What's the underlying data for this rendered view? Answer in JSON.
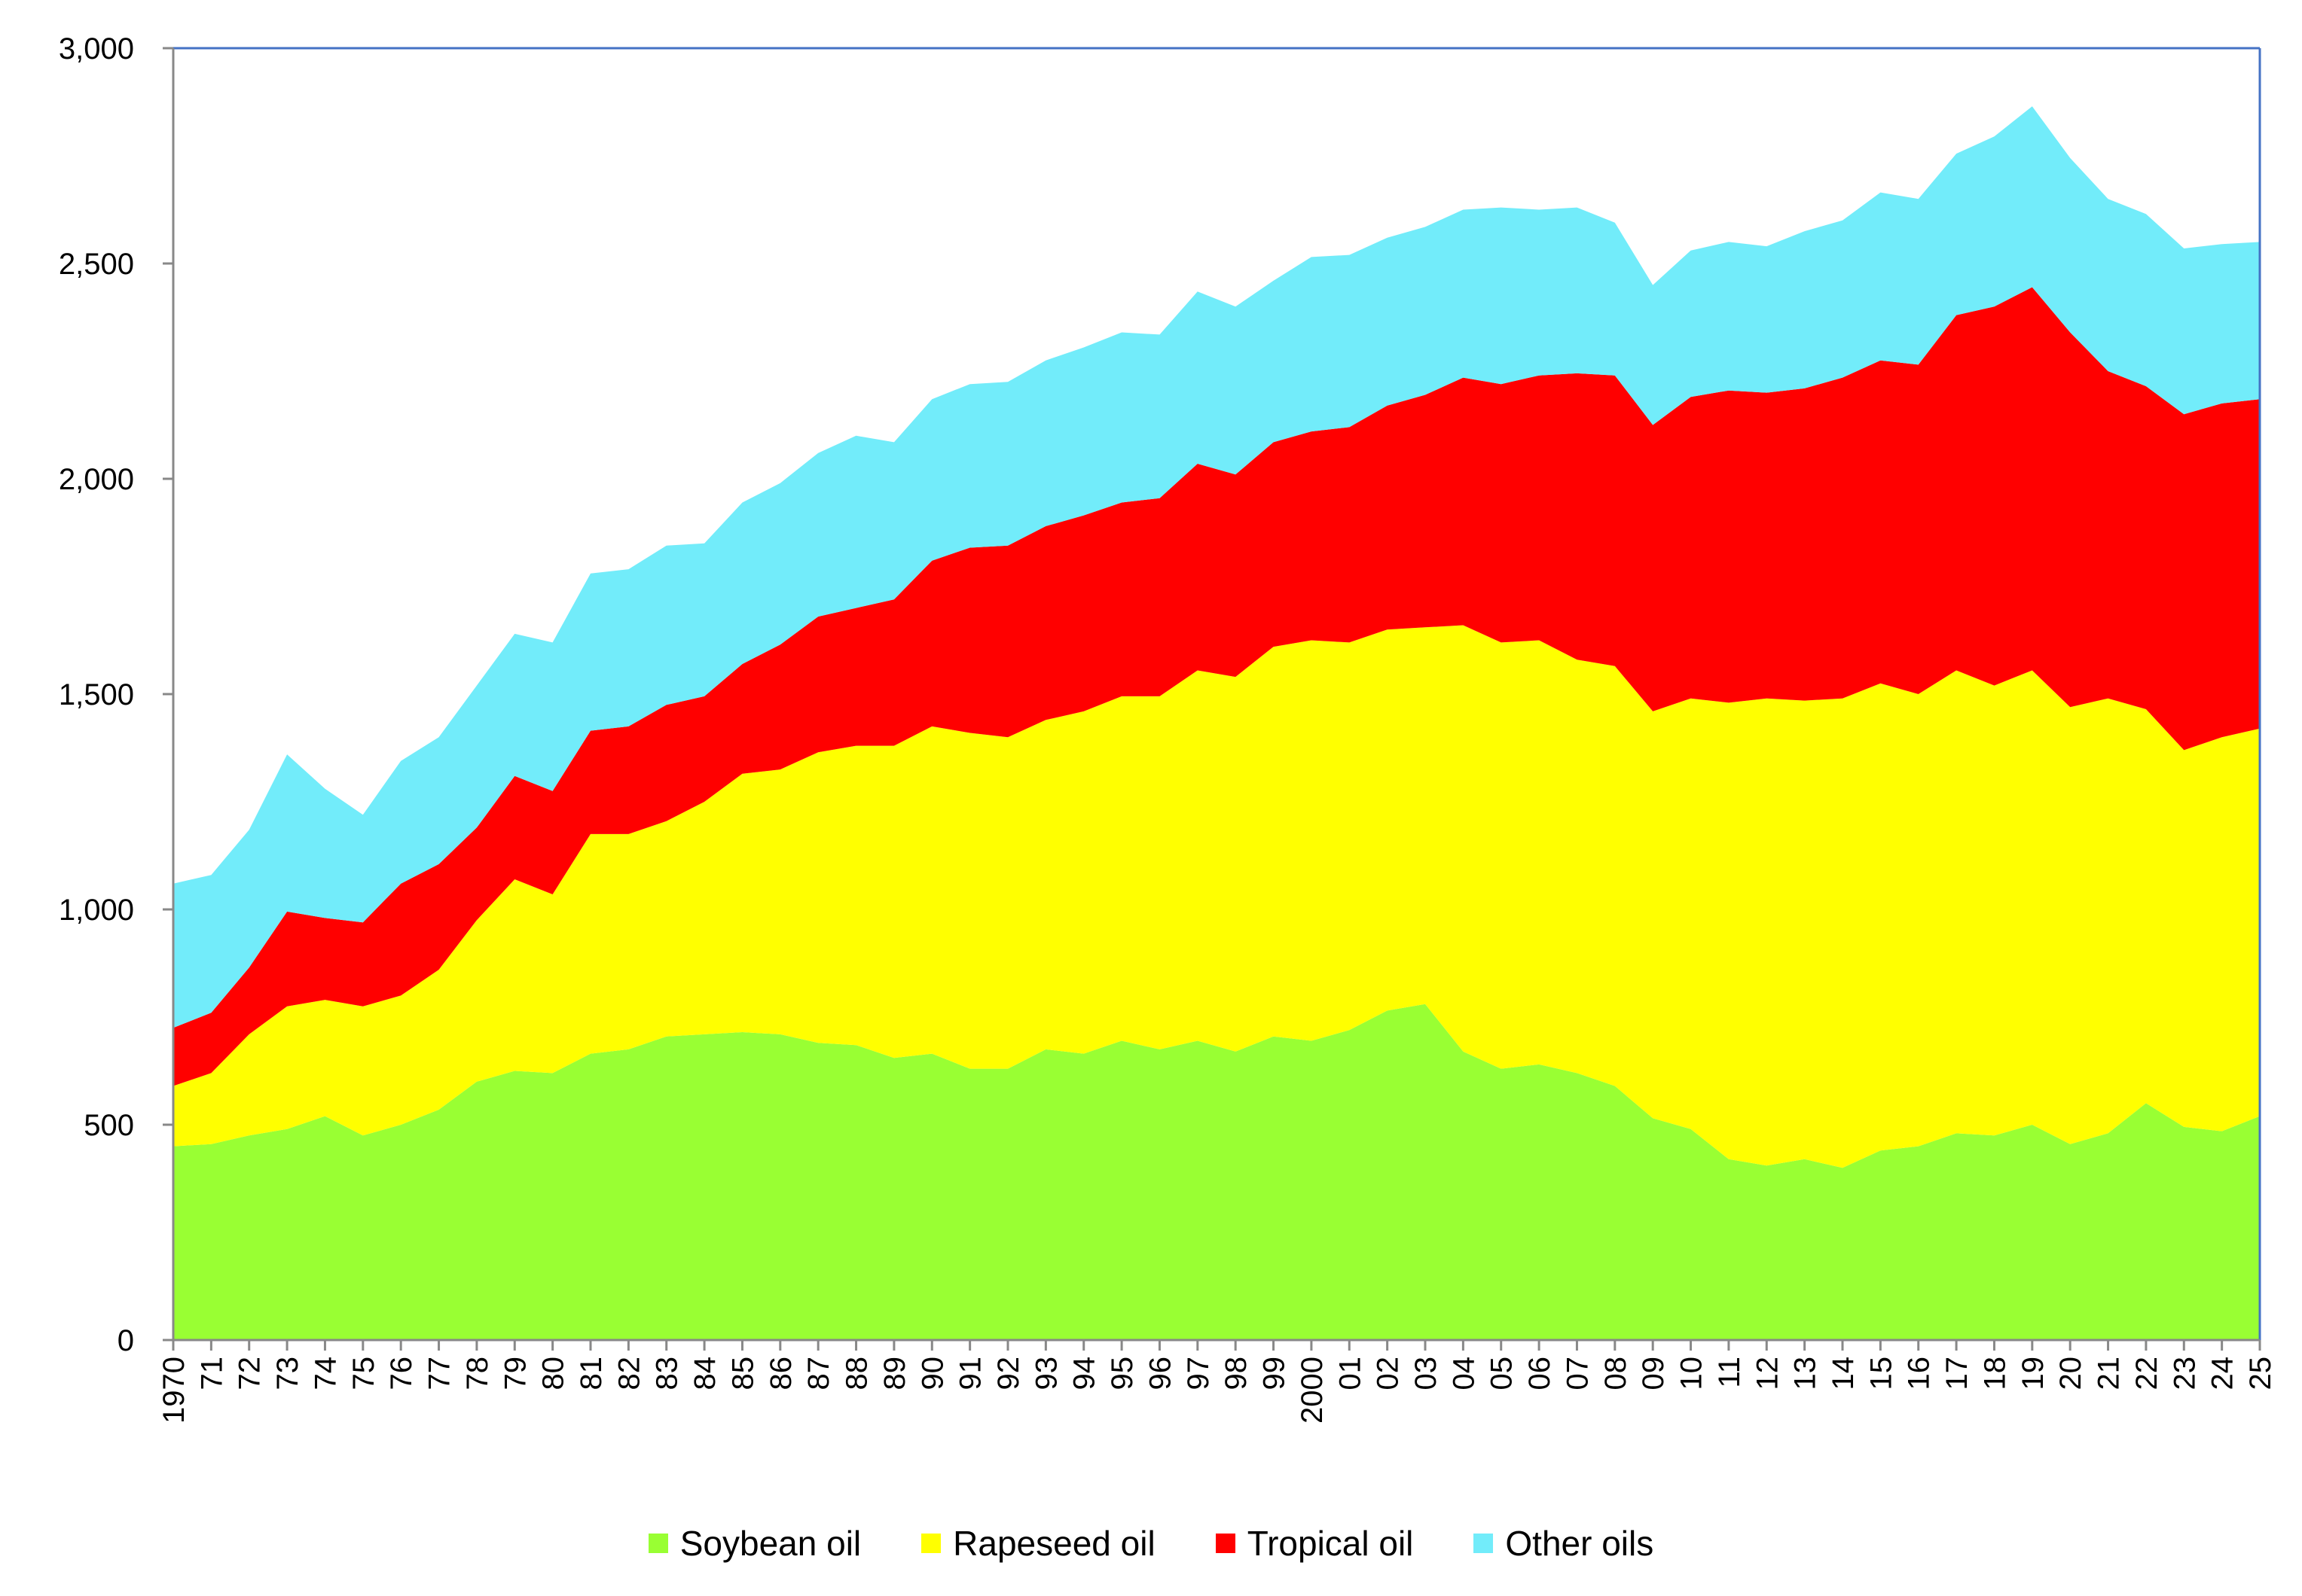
{
  "chart_data": {
    "type": "area",
    "stacked": true,
    "title": "",
    "xlabel": "",
    "ylabel": "",
    "ylim": [
      0,
      3000
    ],
    "yticks": [
      0,
      500,
      1000,
      1500,
      2000,
      2500,
      3000
    ],
    "ytick_labels": [
      "0",
      "500",
      "1,000",
      "1,500",
      "2,000",
      "2,500",
      "3,000"
    ],
    "grid": false,
    "legend_position": "bottom",
    "x": [
      1970,
      1971,
      1972,
      1973,
      1974,
      1975,
      1976,
      1977,
      1978,
      1979,
      1980,
      1981,
      1982,
      1983,
      1984,
      1985,
      1986,
      1987,
      1988,
      1989,
      1990,
      1991,
      1992,
      1993,
      1994,
      1995,
      1996,
      1997,
      1998,
      1999,
      2000,
      2001,
      2002,
      2003,
      2004,
      2005,
      2006,
      2007,
      2008,
      2009,
      2010,
      2011,
      2012,
      2013,
      2014,
      2015,
      2016,
      2017,
      2018,
      2019,
      2020,
      2021,
      2022,
      2023,
      2024,
      2025
    ],
    "xtick_labels": [
      "1970",
      "71",
      "72",
      "73",
      "74",
      "75",
      "76",
      "77",
      "78",
      "79",
      "80",
      "81",
      "82",
      "83",
      "84",
      "85",
      "86",
      "87",
      "88",
      "89",
      "90",
      "91",
      "92",
      "93",
      "94",
      "95",
      "96",
      "97",
      "98",
      "99",
      "2000",
      "01",
      "02",
      "03",
      "04",
      "05",
      "06",
      "07",
      "08",
      "09",
      "10",
      "11",
      "12",
      "13",
      "14",
      "15",
      "16",
      "17",
      "18",
      "19",
      "20",
      "21",
      "22",
      "23",
      "24",
      "25"
    ],
    "series": [
      {
        "name": "Soybean oil",
        "color": "#99ff33",
        "values": [
          450,
          455,
          475,
          490,
          520,
          475,
          500,
          535,
          600,
          625,
          620,
          665,
          675,
          705,
          710,
          715,
          710,
          690,
          685,
          655,
          665,
          630,
          630,
          675,
          665,
          695,
          675,
          695,
          670,
          705,
          695,
          720,
          765,
          780,
          670,
          630,
          640,
          620,
          590,
          515,
          490,
          420,
          405,
          420,
          400,
          440,
          450,
          480,
          475,
          500,
          455,
          480,
          550,
          495,
          485,
          520
        ]
      },
      {
        "name": "Rapeseed oil",
        "color": "#ffff00",
        "values": [
          140,
          165,
          235,
          285,
          270,
          300,
          300,
          325,
          375,
          445,
          415,
          510,
          500,
          500,
          540,
          600,
          615,
          675,
          695,
          725,
          760,
          780,
          770,
          765,
          795,
          800,
          820,
          860,
          870,
          905,
          930,
          900,
          885,
          875,
          990,
          990,
          985,
          960,
          975,
          945,
          1000,
          1060,
          1085,
          1065,
          1090,
          1085,
          1050,
          1075,
          1045,
          1055,
          1015,
          1010,
          915,
          875,
          915,
          900
        ]
      },
      {
        "name": "Tropical oil",
        "color": "#ff0000",
        "values": [
          135,
          140,
          155,
          220,
          190,
          195,
          260,
          245,
          215,
          240,
          240,
          240,
          250,
          270,
          245,
          255,
          290,
          315,
          320,
          340,
          385,
          430,
          445,
          450,
          455,
          450,
          460,
          480,
          470,
          475,
          485,
          500,
          520,
          540,
          575,
          600,
          615,
          665,
          675,
          665,
          700,
          725,
          710,
          725,
          745,
          750,
          765,
          825,
          880,
          890,
          870,
          760,
          750,
          780,
          775,
          765
        ]
      },
      {
        "name": "Other oils",
        "color": "#72ecfa",
        "values": [
          335,
          320,
          320,
          365,
          300,
          250,
          285,
          295,
          330,
          330,
          345,
          365,
          365,
          370,
          355,
          375,
          375,
          380,
          400,
          365,
          375,
          380,
          380,
          385,
          390,
          395,
          380,
          400,
          390,
          375,
          405,
          400,
          390,
          390,
          390,
          410,
          385,
          385,
          355,
          325,
          340,
          345,
          340,
          365,
          365,
          390,
          385,
          375,
          395,
          420,
          405,
          400,
          400,
          385,
          370,
          365
        ]
      }
    ]
  }
}
